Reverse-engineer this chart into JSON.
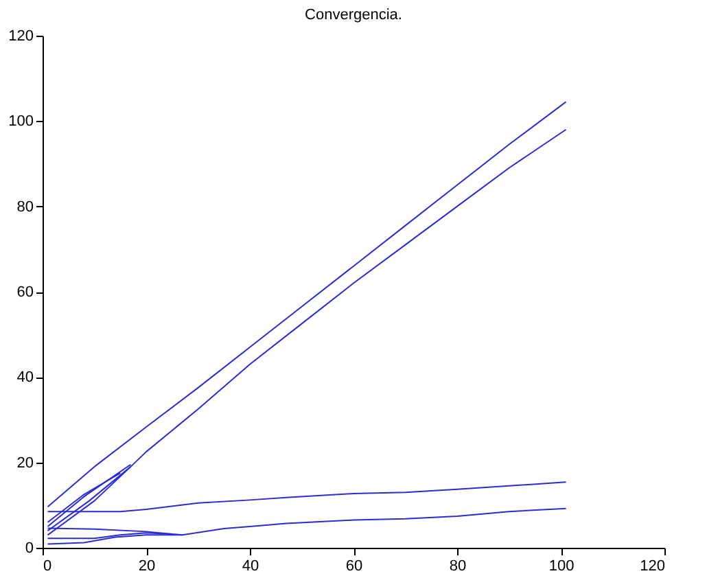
{
  "chart_data": {
    "type": "line",
    "title": "Convergencia.",
    "xlim": [
      0,
      120
    ],
    "ylim": [
      0,
      120
    ],
    "xticks": [
      0,
      20,
      40,
      60,
      80,
      100,
      120
    ],
    "yticks": [
      0,
      20,
      40,
      60,
      80,
      100,
      120
    ],
    "grid": false,
    "legend": false,
    "line_style": "solid",
    "marker": "none",
    "series": [
      {
        "color": "#2b2bd6",
        "x": [
          1,
          10,
          20,
          30,
          40,
          50,
          60,
          70,
          80,
          90,
          101
        ],
        "values": [
          9.6,
          19,
          28.3,
          37.5,
          47,
          56.5,
          66,
          75.5,
          85,
          94.5,
          104.5
        ]
      },
      {
        "color": "#2b2bd6",
        "x": [
          1,
          10,
          17,
          20,
          30,
          40,
          50,
          60,
          70,
          80,
          90,
          101
        ],
        "values": [
          3,
          11,
          19,
          22.5,
          32.5,
          43,
          52.5,
          62,
          71,
          80,
          89,
          98
        ]
      },
      {
        "color": "#2b2bd6",
        "x": [
          1,
          8,
          17
        ],
        "values": [
          5,
          12,
          19.5
        ]
      },
      {
        "color": "#2b2bd6",
        "x": [
          1,
          8,
          15
        ],
        "values": [
          6,
          12.5,
          17.5
        ]
      },
      {
        "color": "#2b2bd6",
        "x": [
          1,
          9,
          17
        ],
        "values": [
          4,
          11,
          19
        ]
      },
      {
        "color": "#2b2bd6",
        "x": [
          1,
          15,
          20,
          30,
          40,
          47,
          60,
          70,
          80,
          90,
          101
        ],
        "values": [
          8.5,
          8.5,
          9,
          10.5,
          11.2,
          11.8,
          12.7,
          13,
          13.7,
          14.5,
          15.4
        ]
      },
      {
        "color": "#2b2bd6",
        "x": [
          1,
          10,
          20,
          27,
          35,
          40,
          47,
          60,
          70,
          80,
          90,
          101
        ],
        "values": [
          4.6,
          4.4,
          3.8,
          3,
          4.5,
          5,
          5.7,
          6.5,
          6.8,
          7.4,
          8.5,
          9.2
        ]
      },
      {
        "color": "#2b2bd6",
        "x": [
          1,
          10,
          15,
          20,
          25
        ],
        "values": [
          2.2,
          2.2,
          3,
          3.5,
          3.2
        ]
      },
      {
        "color": "#2b2bd6",
        "x": [
          1,
          8,
          14,
          20,
          27
        ],
        "values": [
          0.9,
          1.2,
          2.5,
          3,
          3
        ]
      }
    ]
  }
}
